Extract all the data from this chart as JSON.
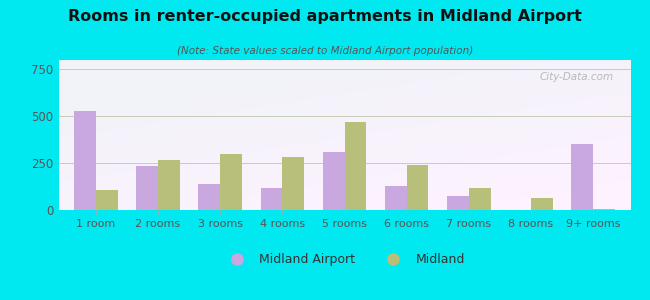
{
  "title": "Rooms in renter-occupied apartments in Midland Airport",
  "subtitle": "(Note: State values scaled to Midland Airport population)",
  "categories": [
    "1 room",
    "2 rooms",
    "3 rooms",
    "4 rooms",
    "5 rooms",
    "6 rooms",
    "7 rooms",
    "8 rooms",
    "9+ rooms"
  ],
  "midland_airport": [
    530,
    235,
    140,
    120,
    310,
    130,
    75,
    0,
    350
  ],
  "midland": [
    105,
    268,
    300,
    285,
    470,
    238,
    120,
    65,
    8
  ],
  "color_airport": "#c9a8e0",
  "color_midland": "#b8bf7a",
  "background_outer": "#00e8f0",
  "ylim": [
    0,
    800
  ],
  "yticks": [
    0,
    250,
    500,
    750
  ],
  "bar_width": 0.35,
  "legend_labels": [
    "Midland Airport",
    "Midland"
  ],
  "watermark": "City-Data.com"
}
